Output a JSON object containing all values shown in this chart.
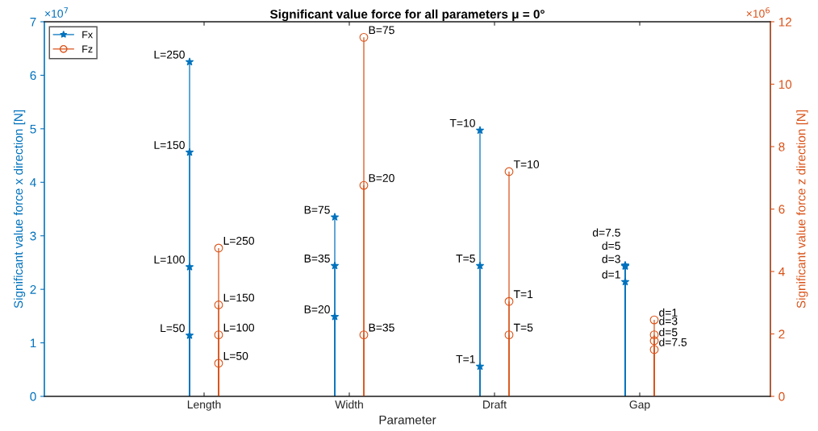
{
  "chart_data": {
    "type": "lollipop",
    "title": "Significant value force for all parameters μ = 0°",
    "xlabel": "Parameter",
    "ylabel": "Significant value force x direction [N]",
    "y2label": "Significant value force z direction [N]",
    "categories": [
      "Length",
      "Width",
      "Draft",
      "Gap"
    ],
    "series": [
      {
        "name": "Fx",
        "color": "#0072bd",
        "marker": "star",
        "x": [
          "Length",
          "Length",
          "Length",
          "Length",
          "Width",
          "Width",
          "Width",
          "Draft",
          "Draft",
          "Draft",
          "Gap",
          "Gap",
          "Gap",
          "Gap"
        ],
        "values": [
          6.25,
          4.56,
          2.42,
          1.14,
          3.35,
          2.44,
          1.49,
          4.97,
          2.44,
          0.56,
          2.45,
          2.44,
          2.43,
          2.14
        ]
      },
      {
        "name": "Fz",
        "color": "#d95319",
        "marker": "circle",
        "axis": "y2",
        "x": [
          "Length",
          "Length",
          "Length",
          "Length",
          "Width",
          "Width",
          "Width",
          "Draft",
          "Draft",
          "Draft",
          "Gap",
          "Gap",
          "Gap",
          "Gap"
        ],
        "values": [
          4.75,
          2.93,
          1.97,
          1.06,
          11.5,
          6.76,
          1.97,
          7.2,
          3.04,
          1.97,
          2.45,
          1.97,
          1.78,
          1.5
        ]
      }
    ],
    "ylim": [
      0,
      7
    ],
    "yticks": [
      0,
      1,
      2,
      3,
      4,
      5,
      6,
      7
    ],
    "y2lim": [
      0,
      12
    ],
    "y2ticks": [
      0,
      2,
      4,
      6,
      8,
      10,
      12
    ],
    "annotations": [
      "×10$^{7}$",
      "×10$^{6}$",
      "L=250",
      "L=150",
      "L=100",
      "L=50",
      "B=75",
      "B=35",
      "B=20",
      "T=10",
      "T=5",
      "T=1",
      "d=7.5",
      "d=5",
      "d=3",
      "d=1",
      "L=250",
      "L=150",
      "L=100",
      "L=50",
      "B=75",
      "B=20",
      "B=35",
      "T=10",
      "T=1",
      "T=5",
      "d=1",
      "d=3",
      "d=5",
      "d=7.5"
    ],
    "legend": "top left",
    "grid": false
  }
}
